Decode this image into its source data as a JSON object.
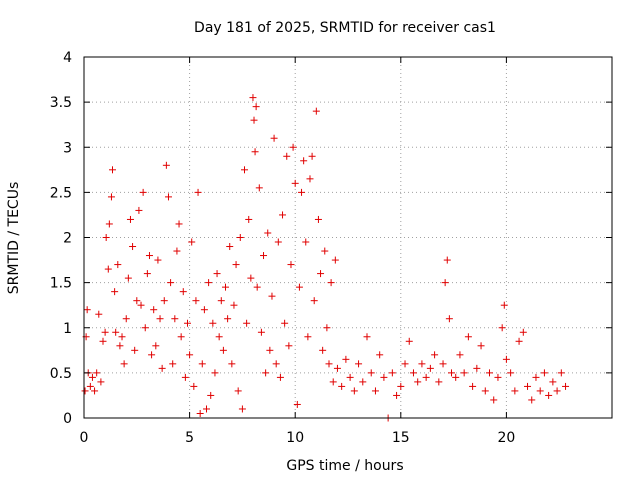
{
  "chart_data": {
    "type": "scatter",
    "title": "Day 181 of 2025, SRMTID for receiver cas1",
    "xlabel": "GPS time / hours",
    "ylabel": "SRMTID / TECUs",
    "xlim": [
      0,
      25
    ],
    "ylim": [
      0,
      4
    ],
    "x_ticks": [
      0,
      5,
      10,
      15,
      20
    ],
    "x_tick_labels": [
      "0",
      "5",
      "10",
      "15",
      "20"
    ],
    "y_ticks": [
      0,
      0.5,
      1,
      1.5,
      2,
      2.5,
      3,
      3.5,
      4
    ],
    "y_tick_labels": [
      "0",
      "0.5",
      "1",
      "1.5",
      "2",
      "2.5",
      "3",
      "3.5",
      "4"
    ],
    "grid": true,
    "marker": "plus",
    "series": [
      {
        "name": "SRMTID",
        "color": "#e00000",
        "points": [
          [
            0.05,
            0.3
          ],
          [
            0.1,
            0.9
          ],
          [
            0.15,
            1.2
          ],
          [
            0.2,
            0.5
          ],
          [
            0.3,
            0.35
          ],
          [
            0.4,
            0.45
          ],
          [
            0.5,
            0.3
          ],
          [
            0.6,
            0.5
          ],
          [
            0.7,
            1.15
          ],
          [
            0.8,
            0.4
          ],
          [
            0.9,
            0.85
          ],
          [
            1.0,
            0.95
          ],
          [
            1.05,
            2.0
          ],
          [
            1.15,
            1.65
          ],
          [
            1.2,
            2.15
          ],
          [
            1.3,
            2.45
          ],
          [
            1.35,
            2.75
          ],
          [
            1.45,
            1.4
          ],
          [
            1.5,
            0.95
          ],
          [
            1.6,
            1.7
          ],
          [
            1.7,
            0.8
          ],
          [
            1.8,
            0.9
          ],
          [
            1.9,
            0.6
          ],
          [
            2.0,
            1.1
          ],
          [
            2.1,
            1.55
          ],
          [
            2.2,
            2.2
          ],
          [
            2.3,
            1.9
          ],
          [
            2.4,
            0.75
          ],
          [
            2.5,
            1.3
          ],
          [
            2.6,
            2.3
          ],
          [
            2.7,
            1.25
          ],
          [
            2.8,
            2.5
          ],
          [
            2.9,
            1.0
          ],
          [
            3.0,
            1.6
          ],
          [
            3.1,
            1.8
          ],
          [
            3.2,
            0.7
          ],
          [
            3.3,
            1.2
          ],
          [
            3.4,
            0.8
          ],
          [
            3.5,
            1.75
          ],
          [
            3.6,
            1.1
          ],
          [
            3.7,
            0.55
          ],
          [
            3.8,
            1.3
          ],
          [
            3.9,
            2.8
          ],
          [
            4.0,
            2.45
          ],
          [
            4.1,
            1.5
          ],
          [
            4.2,
            0.6
          ],
          [
            4.3,
            1.1
          ],
          [
            4.4,
            1.85
          ],
          [
            4.5,
            2.15
          ],
          [
            4.6,
            0.9
          ],
          [
            4.7,
            1.4
          ],
          [
            4.8,
            0.45
          ],
          [
            4.9,
            1.05
          ],
          [
            5.0,
            0.7
          ],
          [
            5.1,
            1.95
          ],
          [
            5.2,
            0.35
          ],
          [
            5.3,
            1.3
          ],
          [
            5.4,
            2.5
          ],
          [
            5.5,
            0.05
          ],
          [
            5.6,
            0.6
          ],
          [
            5.7,
            1.2
          ],
          [
            5.8,
            0.1
          ],
          [
            5.9,
            1.5
          ],
          [
            6.0,
            0.25
          ],
          [
            6.1,
            1.05
          ],
          [
            6.2,
            0.5
          ],
          [
            6.3,
            1.6
          ],
          [
            6.4,
            0.9
          ],
          [
            6.5,
            1.3
          ],
          [
            6.6,
            0.75
          ],
          [
            6.7,
            1.45
          ],
          [
            6.8,
            1.1
          ],
          [
            6.9,
            1.9
          ],
          [
            7.0,
            0.6
          ],
          [
            7.1,
            1.25
          ],
          [
            7.2,
            1.7
          ],
          [
            7.3,
            0.3
          ],
          [
            7.4,
            2.0
          ],
          [
            7.5,
            0.1
          ],
          [
            7.6,
            2.75
          ],
          [
            7.7,
            1.05
          ],
          [
            7.8,
            2.2
          ],
          [
            7.9,
            1.55
          ],
          [
            8.0,
            3.55
          ],
          [
            8.05,
            3.3
          ],
          [
            8.1,
            2.95
          ],
          [
            8.15,
            3.45
          ],
          [
            8.2,
            1.45
          ],
          [
            8.3,
            2.55
          ],
          [
            8.4,
            0.95
          ],
          [
            8.5,
            1.8
          ],
          [
            8.6,
            0.5
          ],
          [
            8.7,
            2.05
          ],
          [
            8.8,
            0.75
          ],
          [
            8.9,
            1.35
          ],
          [
            9.0,
            3.1
          ],
          [
            9.1,
            0.6
          ],
          [
            9.2,
            1.95
          ],
          [
            9.3,
            0.45
          ],
          [
            9.4,
            2.25
          ],
          [
            9.5,
            1.05
          ],
          [
            9.6,
            2.9
          ],
          [
            9.7,
            0.8
          ],
          [
            9.8,
            1.7
          ],
          [
            9.9,
            3.0
          ],
          [
            10.0,
            2.6
          ],
          [
            10.1,
            0.15
          ],
          [
            10.2,
            1.45
          ],
          [
            10.3,
            2.5
          ],
          [
            10.4,
            2.85
          ],
          [
            10.5,
            1.95
          ],
          [
            10.6,
            0.9
          ],
          [
            10.7,
            2.65
          ],
          [
            10.8,
            2.9
          ],
          [
            10.9,
            1.3
          ],
          [
            11.0,
            3.4
          ],
          [
            11.1,
            2.2
          ],
          [
            11.2,
            1.6
          ],
          [
            11.3,
            0.75
          ],
          [
            11.4,
            1.85
          ],
          [
            11.5,
            1.0
          ],
          [
            11.6,
            0.6
          ],
          [
            11.7,
            1.5
          ],
          [
            11.8,
            0.4
          ],
          [
            11.9,
            1.75
          ],
          [
            12.0,
            0.55
          ],
          [
            12.2,
            0.35
          ],
          [
            12.4,
            0.65
          ],
          [
            12.6,
            0.45
          ],
          [
            12.8,
            0.3
          ],
          [
            13.0,
            0.6
          ],
          [
            13.2,
            0.4
          ],
          [
            13.4,
            0.9
          ],
          [
            13.6,
            0.5
          ],
          [
            13.8,
            0.3
          ],
          [
            14.0,
            0.7
          ],
          [
            14.2,
            0.45
          ],
          [
            14.4,
            0.0
          ],
          [
            14.6,
            0.5
          ],
          [
            14.8,
            0.25
          ],
          [
            15.0,
            0.35
          ],
          [
            15.2,
            0.6
          ],
          [
            15.4,
            0.85
          ],
          [
            15.6,
            0.5
          ],
          [
            15.8,
            0.4
          ],
          [
            16.0,
            0.6
          ],
          [
            16.2,
            0.45
          ],
          [
            16.4,
            0.55
          ],
          [
            16.6,
            0.7
          ],
          [
            16.8,
            0.4
          ],
          [
            17.0,
            0.6
          ],
          [
            17.1,
            1.5
          ],
          [
            17.2,
            1.75
          ],
          [
            17.3,
            1.1
          ],
          [
            17.4,
            0.5
          ],
          [
            17.6,
            0.45
          ],
          [
            17.8,
            0.7
          ],
          [
            18.0,
            0.5
          ],
          [
            18.2,
            0.9
          ],
          [
            18.4,
            0.35
          ],
          [
            18.6,
            0.55
          ],
          [
            18.8,
            0.8
          ],
          [
            19.0,
            0.3
          ],
          [
            19.2,
            0.5
          ],
          [
            19.4,
            0.2
          ],
          [
            19.6,
            0.45
          ],
          [
            19.8,
            1.0
          ],
          [
            19.9,
            1.25
          ],
          [
            20.0,
            0.65
          ],
          [
            20.2,
            0.5
          ],
          [
            20.4,
            0.3
          ],
          [
            20.6,
            0.85
          ],
          [
            20.8,
            0.95
          ],
          [
            21.0,
            0.35
          ],
          [
            21.2,
            0.2
          ],
          [
            21.4,
            0.45
          ],
          [
            21.6,
            0.3
          ],
          [
            21.8,
            0.5
          ],
          [
            22.0,
            0.25
          ],
          [
            22.2,
            0.4
          ],
          [
            22.4,
            0.3
          ],
          [
            22.6,
            0.5
          ],
          [
            22.8,
            0.35
          ]
        ]
      }
    ]
  }
}
